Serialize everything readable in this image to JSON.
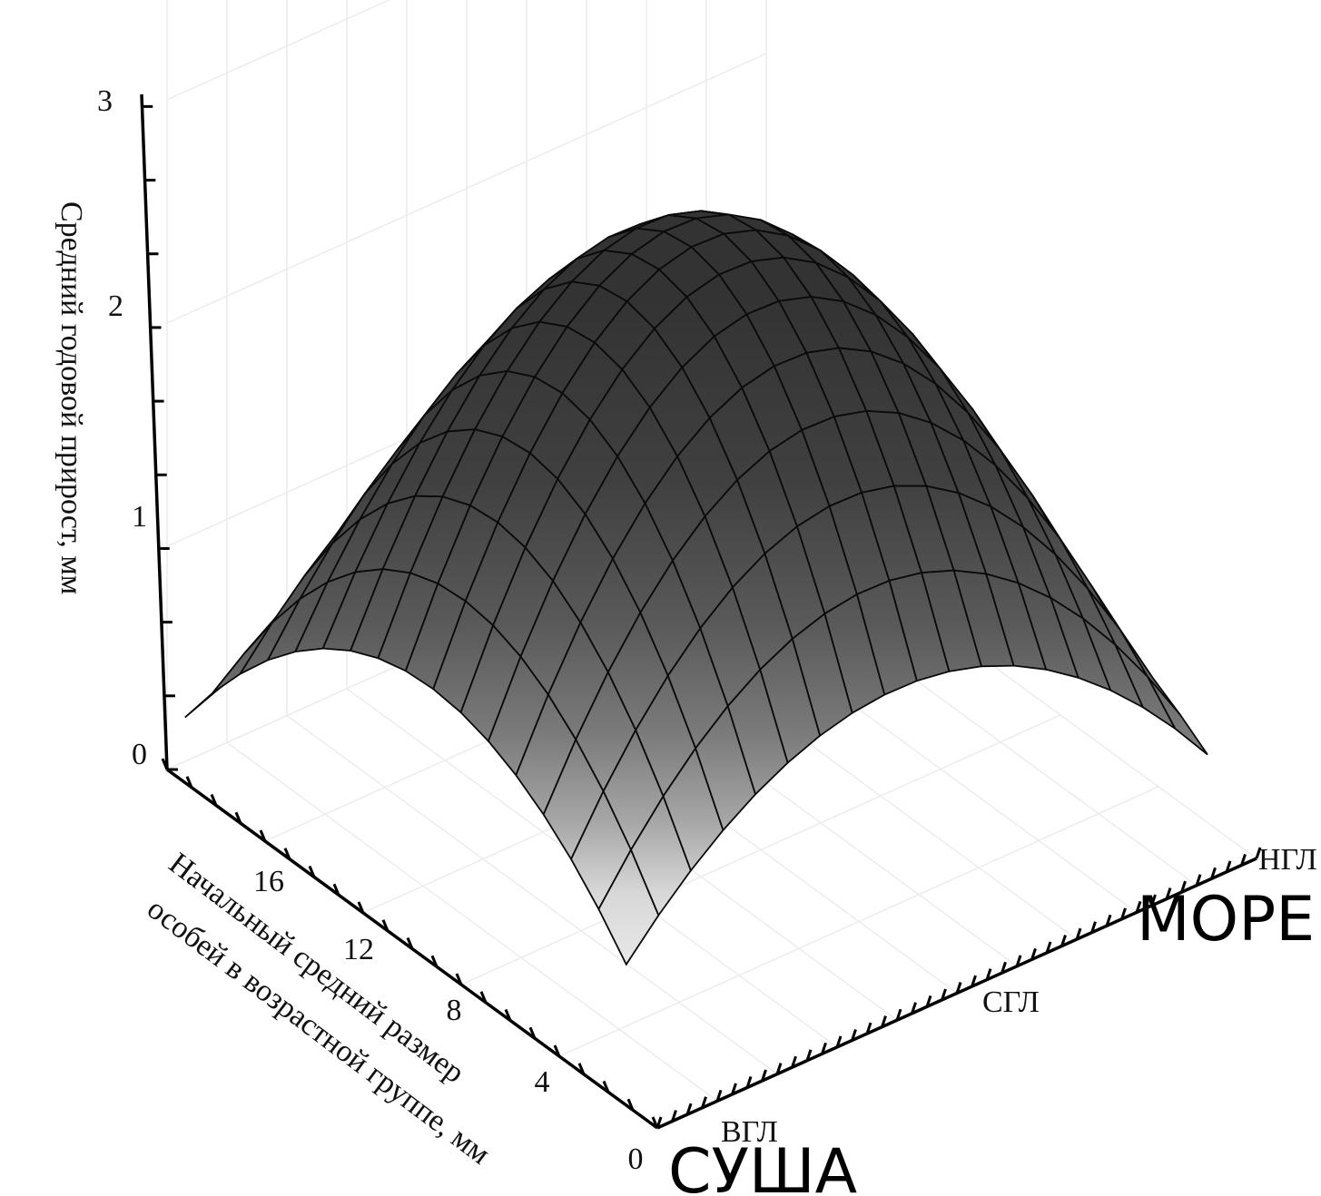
{
  "chart_data": {
    "type": "surface3d",
    "zlabel": "Средний годовой прирост, мм",
    "ylabel_line1": "Начальный средний размер",
    "ylabel_line2": "особей в возрастной группе, мм",
    "z_ticks": [
      "0",
      "1",
      "2",
      "3"
    ],
    "zlim": [
      0,
      3
    ],
    "size_ticks": [
      "0",
      "4",
      "8",
      "12",
      "16"
    ],
    "size_range": [
      0,
      20
    ],
    "depth_ticks": [
      "ВГЛ",
      "СГЛ",
      "НГЛ"
    ],
    "region_labels": {
      "land": "СУША",
      "sea": "МОРЕ"
    },
    "surface_peak": 2.6,
    "grid_visible": true
  }
}
